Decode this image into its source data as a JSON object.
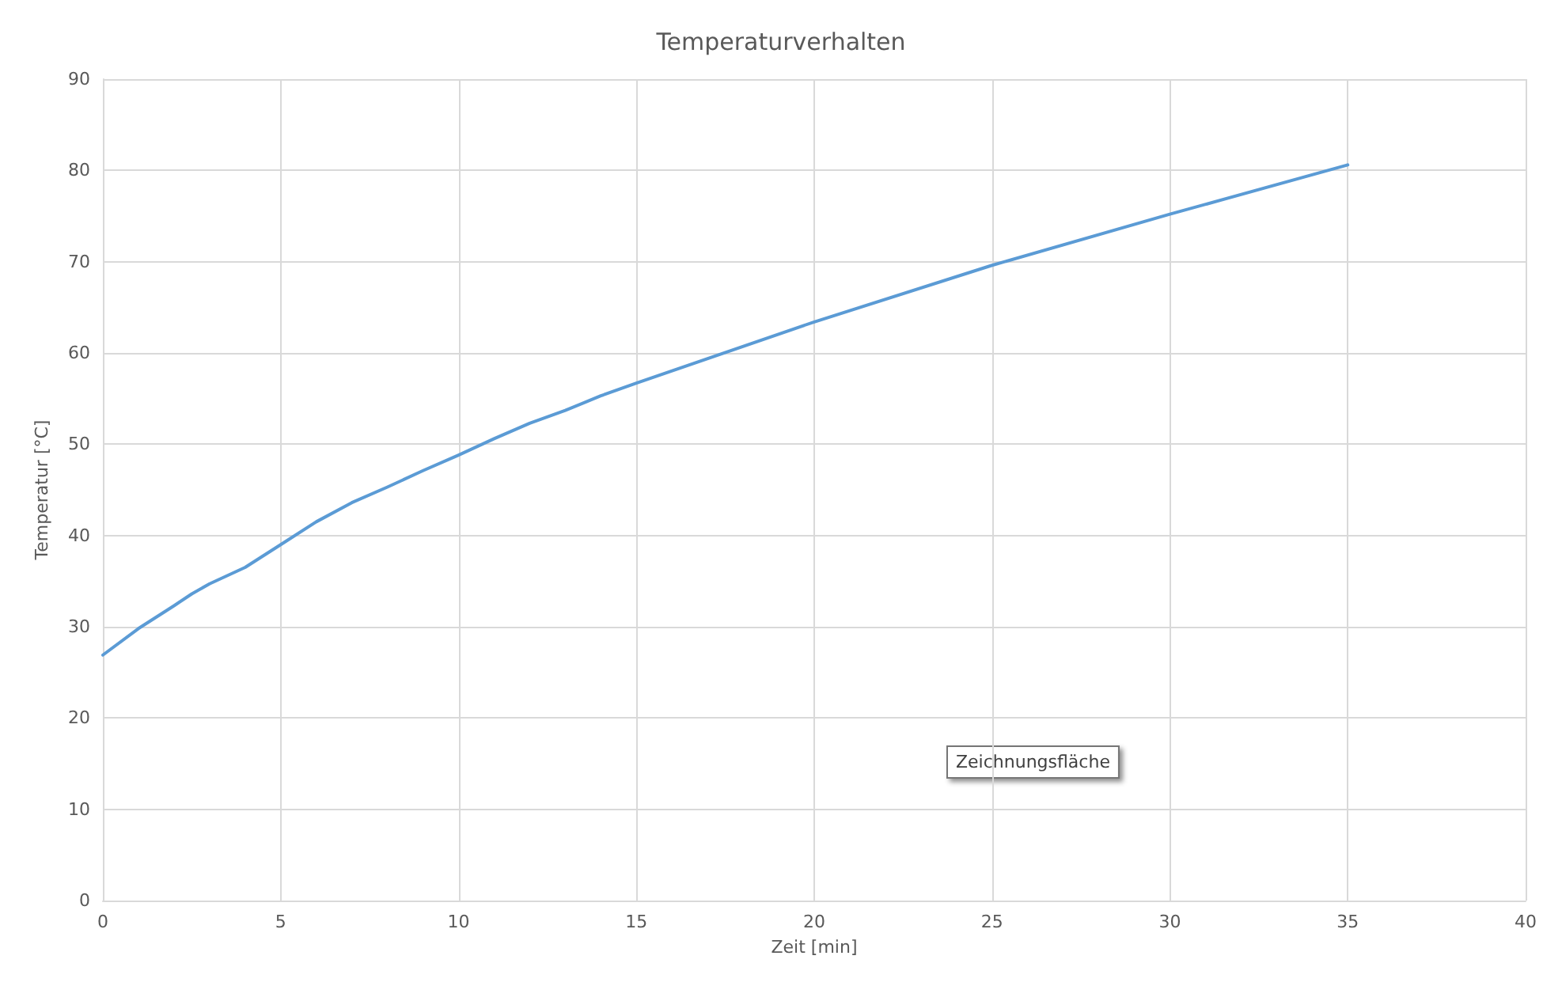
{
  "chart_data": {
    "type": "line",
    "title": "Temperaturverhalten",
    "xlabel": "Zeit [min]",
    "ylabel": "Temperatur [°C]",
    "x": [
      0,
      1,
      2,
      2.5,
      3,
      4,
      5,
      6,
      7,
      8,
      9,
      10,
      11,
      12,
      13,
      14,
      15,
      20,
      25,
      30,
      35
    ],
    "series": [
      {
        "color": "#5b9bd5",
        "values": [
          26.9,
          29.8,
          32.3,
          33.6,
          34.7,
          36.5,
          39,
          41.5,
          43.6,
          45.3,
          47.1,
          48.8,
          50.6,
          52.3,
          53.7,
          55.3,
          56.7,
          63.4,
          69.6,
          75.2,
          80.6
        ]
      }
    ],
    "xlim": [
      0,
      40
    ],
    "xticks": [
      0,
      5,
      10,
      15,
      20,
      25,
      30,
      35,
      40
    ],
    "ylim": [
      0,
      90
    ],
    "yticks": [
      0,
      10,
      20,
      30,
      40,
      50,
      60,
      70,
      80,
      90
    ],
    "grid": true,
    "marker": "none",
    "line_style": "solid",
    "annotations": [
      "Zeichnungsfläche"
    ]
  }
}
